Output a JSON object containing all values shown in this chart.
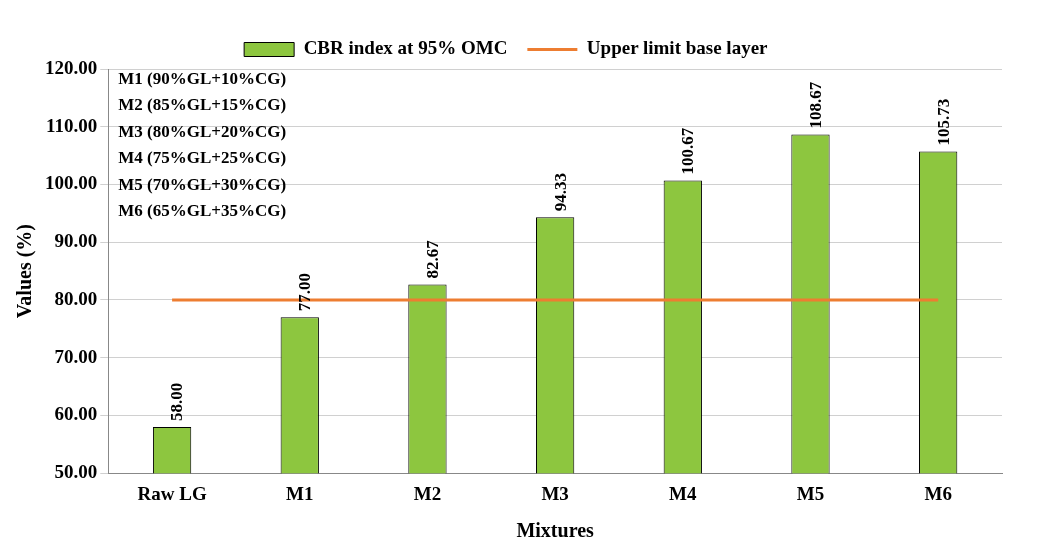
{
  "chart_data": {
    "type": "bar",
    "xlabel": "Mixtures",
    "ylabel": "Values (%)",
    "categories": [
      "Raw LG",
      "M1",
      "M2",
      "M3",
      "M4",
      "M5",
      "M6"
    ],
    "series": [
      {
        "name": "CBR index at 95% OMC",
        "color": "#8dc63f",
        "values": [
          58.0,
          77.0,
          82.67,
          94.33,
          100.67,
          108.67,
          105.73
        ],
        "value_labels": [
          "58.00",
          "77.00",
          "82.67",
          "94.33",
          "100.67",
          "108.67",
          "105.73"
        ]
      },
      {
        "name": "Upper limit base layer",
        "type": "line",
        "color": "#ed7d31",
        "values": [
          80,
          80,
          80,
          80,
          80,
          80,
          80
        ]
      }
    ],
    "ylim": [
      50,
      120
    ],
    "yticks": [
      {
        "value": 50,
        "label": "50.00"
      },
      {
        "value": 60,
        "label": "60.00"
      },
      {
        "value": 70,
        "label": "70.00"
      },
      {
        "value": 80,
        "label": "80.00"
      },
      {
        "value": 90,
        "label": "90.00"
      },
      {
        "value": 100,
        "label": "100.00"
      },
      {
        "value": 110,
        "label": "110.00"
      },
      {
        "value": 120,
        "label": "120.00"
      }
    ],
    "grid": "y",
    "legend": "top",
    "marker": "none",
    "annotations": [
      "M1 (90%GL+10%CG)",
      "M2 (85%GL+15%CG)",
      "M3 (80%GL+20%CG)",
      "M4 (75%GL+25%CG)",
      "M5 (70%GL+30%CG)",
      "M6 (65%GL+35%CG)"
    ]
  }
}
